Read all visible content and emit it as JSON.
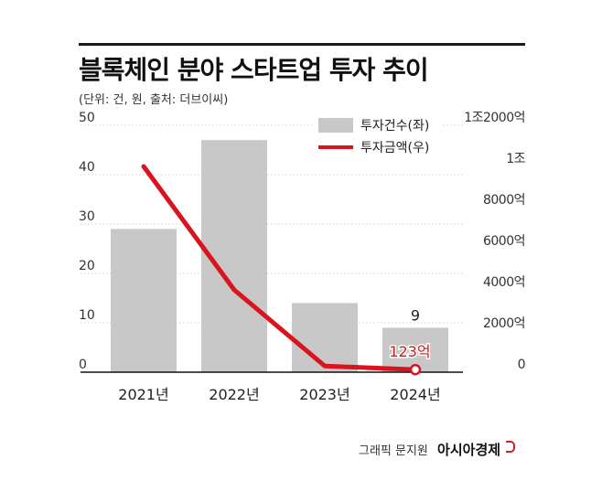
{
  "header": {
    "title": "블록체인 분야 스타트업 투자 추이",
    "subtitle": "(단위: 건, 원, 출처: 더브이씨)"
  },
  "credit": {
    "text": "그래픽 문지원",
    "brand": "아시아경제"
  },
  "colors": {
    "bar": "#c8c8c8",
    "line": "#d9141e",
    "grid": "#d0d0d0",
    "axis": "#111111"
  },
  "chart_data": {
    "type": "bar",
    "title": "블록체인 분야 스타트업 투자 추이",
    "categories": [
      "2021년",
      "2022년",
      "2023년",
      "2024년"
    ],
    "legend": {
      "position": "top-right"
    },
    "grid": true,
    "y_left": {
      "ticks": [
        0,
        10,
        20,
        30,
        40,
        50
      ],
      "tick_labels": [
        "0",
        "10",
        "20",
        "30",
        "40",
        "50"
      ],
      "ylim": [
        0,
        50
      ]
    },
    "y_right": {
      "ticks": [
        0,
        2000,
        4000,
        6000,
        8000,
        10000,
        12000
      ],
      "tick_labels": [
        "0",
        "2000억",
        "4000억",
        "6000억",
        "8000억",
        "1조",
        "1조2000억"
      ],
      "ylim": [
        0,
        12000
      ]
    },
    "series": [
      {
        "name": "투자건수(좌)",
        "type": "bar",
        "axis": "left",
        "values": [
          29,
          47,
          14,
          9
        ],
        "data_labels": [
          null,
          null,
          null,
          "9"
        ]
      },
      {
        "name": "투자금액(우)",
        "type": "line",
        "axis": "right",
        "values": [
          10000,
          4000,
          300,
          123
        ],
        "data_labels": [
          null,
          null,
          null,
          "123억"
        ]
      }
    ]
  }
}
